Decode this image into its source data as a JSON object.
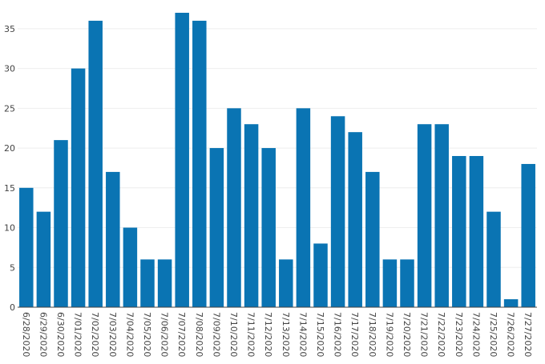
{
  "chart_data": {
    "type": "bar",
    "title": "",
    "xlabel": "",
    "ylabel": "",
    "categories": [
      "6/28/2020",
      "6/29/2020",
      "6/30/2020",
      "7/01/2020",
      "7/02/2020",
      "7/03/2020",
      "7/04/2020",
      "7/05/2020",
      "7/06/2020",
      "7/07/2020",
      "7/08/2020",
      "7/09/2020",
      "7/10/2020",
      "7/11/2020",
      "7/12/2020",
      "7/13/2020",
      "7/14/2020",
      "7/15/2020",
      "7/16/2020",
      "7/17/2020",
      "7/18/2020",
      "7/19/2020",
      "7/20/2020",
      "7/21/2020",
      "7/22/2020",
      "7/23/2020",
      "7/24/2020",
      "7/25/2020",
      "7/26/2020",
      "7/27/2020"
    ],
    "values": [
      15,
      12,
      21,
      30,
      36,
      17,
      10,
      6,
      6,
      37,
      36,
      20,
      25,
      23,
      20,
      6,
      25,
      8,
      24,
      22,
      17,
      6,
      6,
      23,
      23,
      19,
      19,
      12,
      1,
      18
    ],
    "ylim": [
      0,
      37.5
    ],
    "yticks": [
      0,
      5,
      10,
      15,
      20,
      25,
      30,
      35
    ],
    "grid": true,
    "legend": "none",
    "colors": {
      "bar": "#0a74b3",
      "grid": "#eeeeee",
      "axis": "#444444",
      "text": "#444444"
    }
  }
}
